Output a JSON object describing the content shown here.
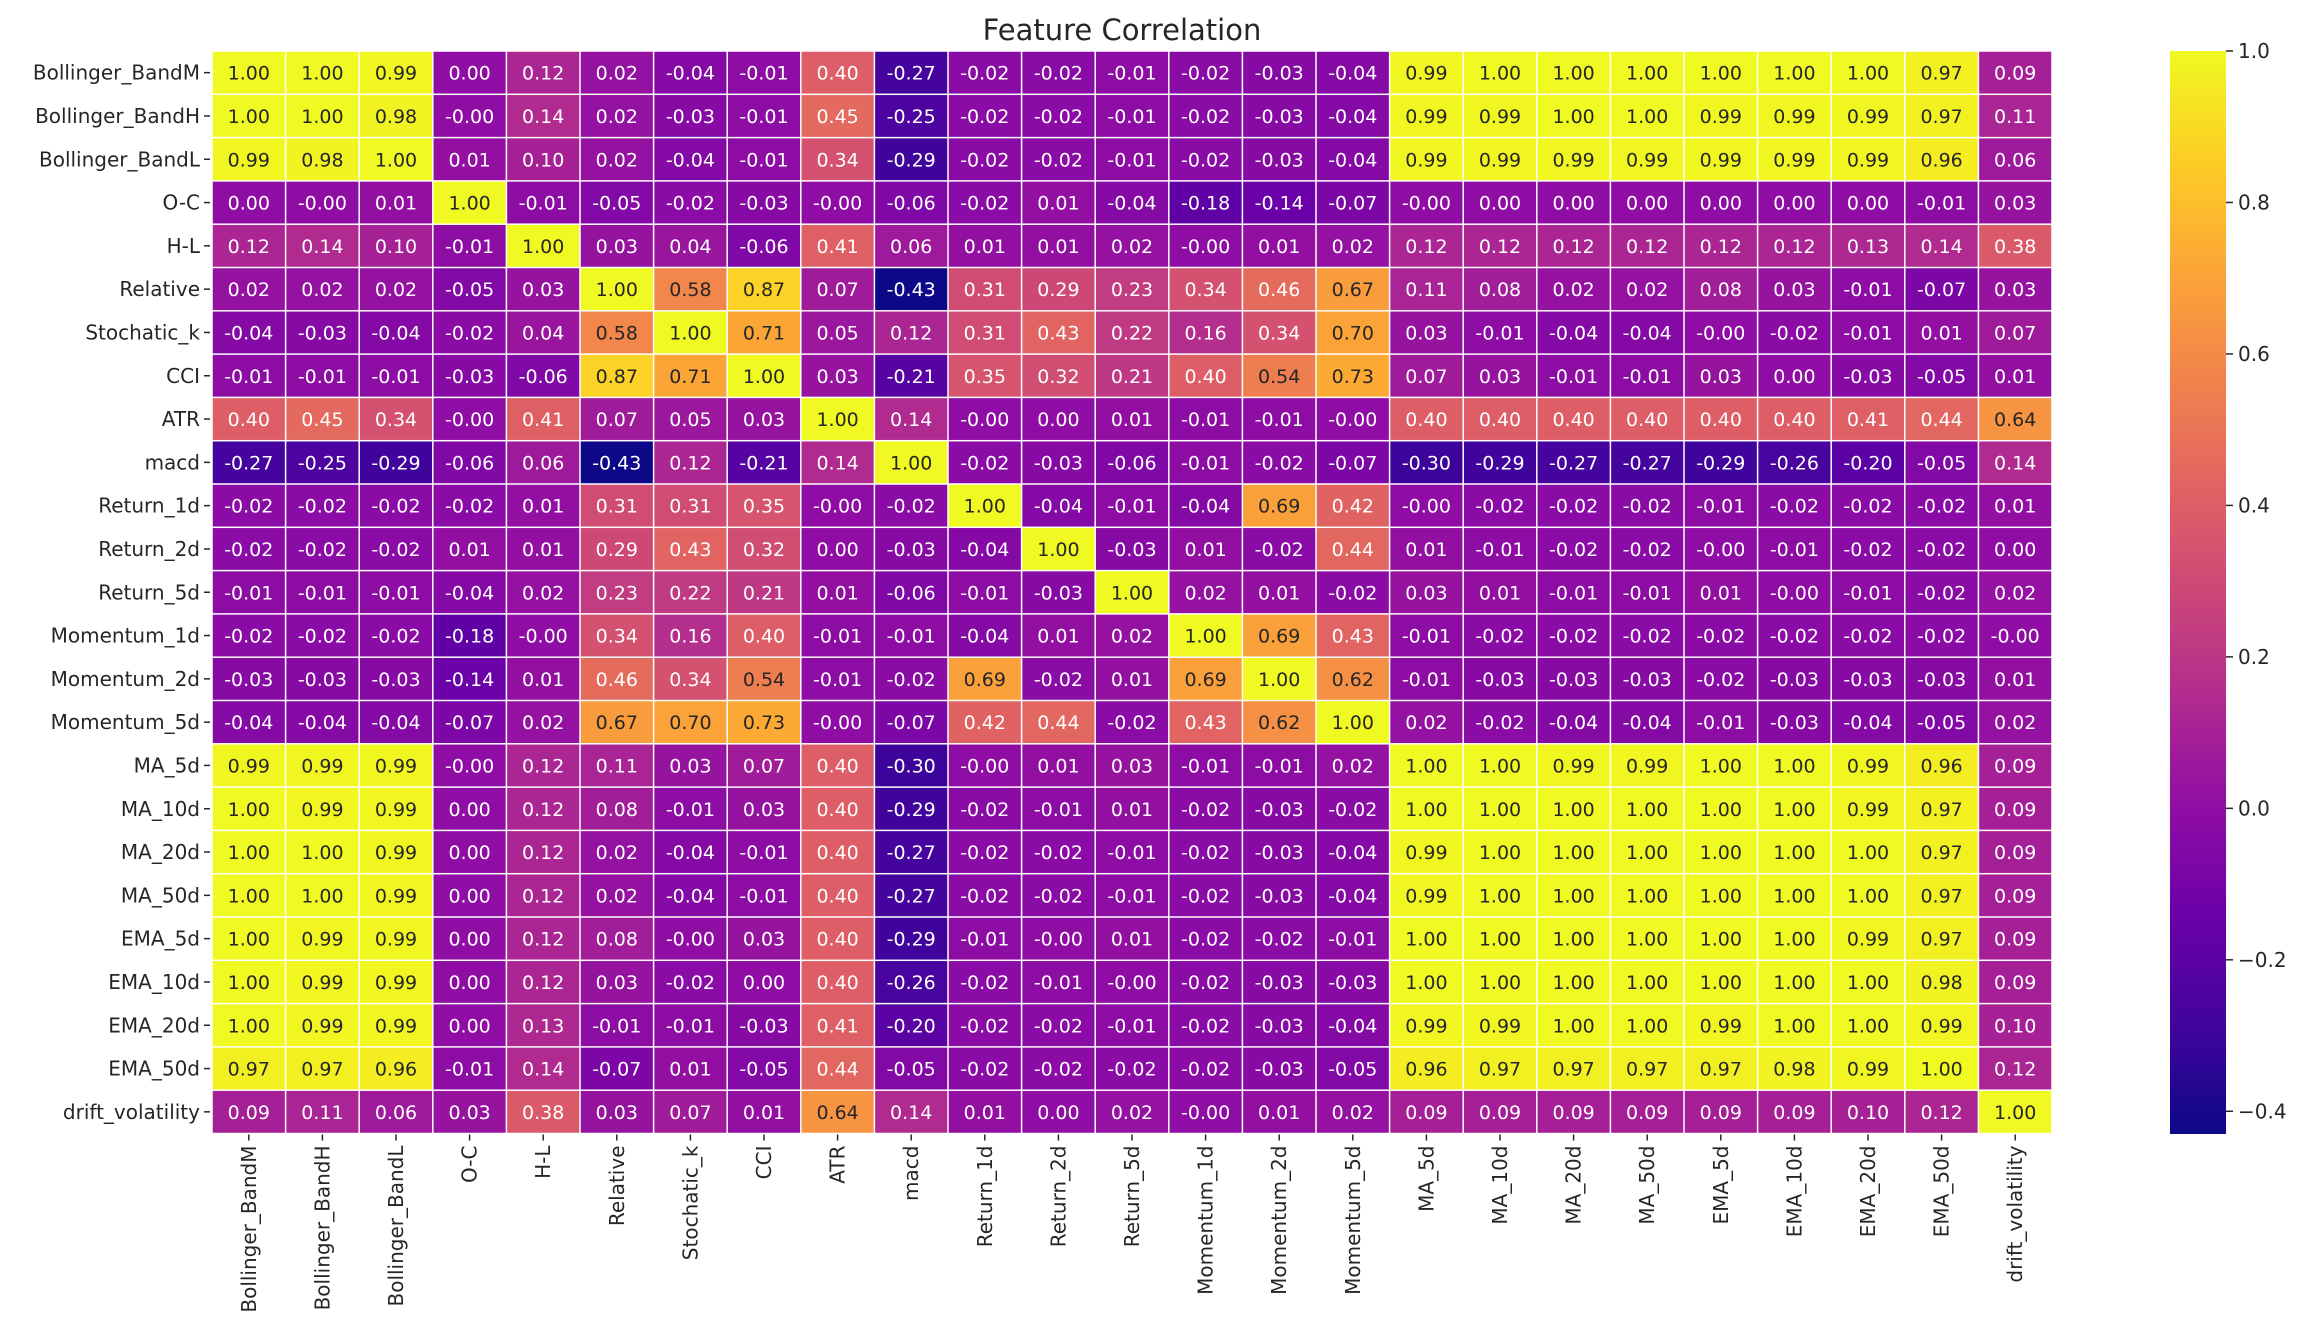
{
  "chart_data": {
    "type": "heatmap",
    "title": "Feature Correlation",
    "labels": [
      "Bollinger_BandM",
      "Bollinger_BandH",
      "Bollinger_BandL",
      "O-C",
      "H-L",
      "Relative",
      "Stochatic_k",
      "CCI",
      "ATR",
      "macd",
      "Return_1d",
      "Return_2d",
      "Return_5d",
      "Momentum_1d",
      "Momentum_2d",
      "Momentum_5d",
      "MA_5d",
      "MA_10d",
      "MA_20d",
      "MA_50d",
      "EMA_5d",
      "EMA_10d",
      "EMA_20d",
      "EMA_50d",
      "drift_volatility"
    ],
    "values": [
      [
        "1.00",
        "1.00",
        "0.99",
        "0.00",
        "0.12",
        "0.02",
        "-0.04",
        "-0.01",
        "0.40",
        "-0.27",
        "-0.02",
        "-0.02",
        "-0.01",
        "-0.02",
        "-0.03",
        "-0.04",
        "0.99",
        "1.00",
        "1.00",
        "1.00",
        "1.00",
        "1.00",
        "1.00",
        "0.97",
        "0.09"
      ],
      [
        "1.00",
        "1.00",
        "0.98",
        "-0.00",
        "0.14",
        "0.02",
        "-0.03",
        "-0.01",
        "0.45",
        "-0.25",
        "-0.02",
        "-0.02",
        "-0.01",
        "-0.02",
        "-0.03",
        "-0.04",
        "0.99",
        "0.99",
        "1.00",
        "1.00",
        "0.99",
        "0.99",
        "0.99",
        "0.97",
        "0.11"
      ],
      [
        "0.99",
        "0.98",
        "1.00",
        "0.01",
        "0.10",
        "0.02",
        "-0.04",
        "-0.01",
        "0.34",
        "-0.29",
        "-0.02",
        "-0.02",
        "-0.01",
        "-0.02",
        "-0.03",
        "-0.04",
        "0.99",
        "0.99",
        "0.99",
        "0.99",
        "0.99",
        "0.99",
        "0.99",
        "0.96",
        "0.06"
      ],
      [
        "0.00",
        "-0.00",
        "0.01",
        "1.00",
        "-0.01",
        "-0.05",
        "-0.02",
        "-0.03",
        "-0.00",
        "-0.06",
        "-0.02",
        "0.01",
        "-0.04",
        "-0.18",
        "-0.14",
        "-0.07",
        "-0.00",
        "0.00",
        "0.00",
        "0.00",
        "0.00",
        "0.00",
        "0.00",
        "-0.01",
        "0.03"
      ],
      [
        "0.12",
        "0.14",
        "0.10",
        "-0.01",
        "1.00",
        "0.03",
        "0.04",
        "-0.06",
        "0.41",
        "0.06",
        "0.01",
        "0.01",
        "0.02",
        "-0.00",
        "0.01",
        "0.02",
        "0.12",
        "0.12",
        "0.12",
        "0.12",
        "0.12",
        "0.12",
        "0.13",
        "0.14",
        "0.38"
      ],
      [
        "0.02",
        "0.02",
        "0.02",
        "-0.05",
        "0.03",
        "1.00",
        "0.58",
        "0.87",
        "0.07",
        "-0.43",
        "0.31",
        "0.29",
        "0.23",
        "0.34",
        "0.46",
        "0.67",
        "0.11",
        "0.08",
        "0.02",
        "0.02",
        "0.08",
        "0.03",
        "-0.01",
        "-0.07",
        "0.03"
      ],
      [
        "-0.04",
        "-0.03",
        "-0.04",
        "-0.02",
        "0.04",
        "0.58",
        "1.00",
        "0.71",
        "0.05",
        "0.12",
        "0.31",
        "0.43",
        "0.22",
        "0.16",
        "0.34",
        "0.70",
        "0.03",
        "-0.01",
        "-0.04",
        "-0.04",
        "-0.00",
        "-0.02",
        "-0.01",
        "0.01",
        "0.07"
      ],
      [
        "-0.01",
        "-0.01",
        "-0.01",
        "-0.03",
        "-0.06",
        "0.87",
        "0.71",
        "1.00",
        "0.03",
        "-0.21",
        "0.35",
        "0.32",
        "0.21",
        "0.40",
        "0.54",
        "0.73",
        "0.07",
        "0.03",
        "-0.01",
        "-0.01",
        "0.03",
        "0.00",
        "-0.03",
        "-0.05",
        "0.01"
      ],
      [
        "0.40",
        "0.45",
        "0.34",
        "-0.00",
        "0.41",
        "0.07",
        "0.05",
        "0.03",
        "1.00",
        "0.14",
        "-0.00",
        "0.00",
        "0.01",
        "-0.01",
        "-0.01",
        "-0.00",
        "0.40",
        "0.40",
        "0.40",
        "0.40",
        "0.40",
        "0.40",
        "0.41",
        "0.44",
        "0.64"
      ],
      [
        "-0.27",
        "-0.25",
        "-0.29",
        "-0.06",
        "0.06",
        "-0.43",
        "0.12",
        "-0.21",
        "0.14",
        "1.00",
        "-0.02",
        "-0.03",
        "-0.06",
        "-0.01",
        "-0.02",
        "-0.07",
        "-0.30",
        "-0.29",
        "-0.27",
        "-0.27",
        "-0.29",
        "-0.26",
        "-0.20",
        "-0.05",
        "0.14"
      ],
      [
        "-0.02",
        "-0.02",
        "-0.02",
        "-0.02",
        "0.01",
        "0.31",
        "0.31",
        "0.35",
        "-0.00",
        "-0.02",
        "1.00",
        "-0.04",
        "-0.01",
        "-0.04",
        "0.69",
        "0.42",
        "-0.00",
        "-0.02",
        "-0.02",
        "-0.02",
        "-0.01",
        "-0.02",
        "-0.02",
        "-0.02",
        "0.01"
      ],
      [
        "-0.02",
        "-0.02",
        "-0.02",
        "0.01",
        "0.01",
        "0.29",
        "0.43",
        "0.32",
        "0.00",
        "-0.03",
        "-0.04",
        "1.00",
        "-0.03",
        "0.01",
        "-0.02",
        "0.44",
        "0.01",
        "-0.01",
        "-0.02",
        "-0.02",
        "-0.00",
        "-0.01",
        "-0.02",
        "-0.02",
        "0.00"
      ],
      [
        "-0.01",
        "-0.01",
        "-0.01",
        "-0.04",
        "0.02",
        "0.23",
        "0.22",
        "0.21",
        "0.01",
        "-0.06",
        "-0.01",
        "-0.03",
        "1.00",
        "0.02",
        "0.01",
        "-0.02",
        "0.03",
        "0.01",
        "-0.01",
        "-0.01",
        "0.01",
        "-0.00",
        "-0.01",
        "-0.02",
        "0.02"
      ],
      [
        "-0.02",
        "-0.02",
        "-0.02",
        "-0.18",
        "-0.00",
        "0.34",
        "0.16",
        "0.40",
        "-0.01",
        "-0.01",
        "-0.04",
        "0.01",
        "0.02",
        "1.00",
        "0.69",
        "0.43",
        "-0.01",
        "-0.02",
        "-0.02",
        "-0.02",
        "-0.02",
        "-0.02",
        "-0.02",
        "-0.02",
        "-0.00"
      ],
      [
        "-0.03",
        "-0.03",
        "-0.03",
        "-0.14",
        "0.01",
        "0.46",
        "0.34",
        "0.54",
        "-0.01",
        "-0.02",
        "0.69",
        "-0.02",
        "0.01",
        "0.69",
        "1.00",
        "0.62",
        "-0.01",
        "-0.03",
        "-0.03",
        "-0.03",
        "-0.02",
        "-0.03",
        "-0.03",
        "-0.03",
        "0.01"
      ],
      [
        "-0.04",
        "-0.04",
        "-0.04",
        "-0.07",
        "0.02",
        "0.67",
        "0.70",
        "0.73",
        "-0.00",
        "-0.07",
        "0.42",
        "0.44",
        "-0.02",
        "0.43",
        "0.62",
        "1.00",
        "0.02",
        "-0.02",
        "-0.04",
        "-0.04",
        "-0.01",
        "-0.03",
        "-0.04",
        "-0.05",
        "0.02"
      ],
      [
        "0.99",
        "0.99",
        "0.99",
        "-0.00",
        "0.12",
        "0.11",
        "0.03",
        "0.07",
        "0.40",
        "-0.30",
        "-0.00",
        "0.01",
        "0.03",
        "-0.01",
        "-0.01",
        "0.02",
        "1.00",
        "1.00",
        "0.99",
        "0.99",
        "1.00",
        "1.00",
        "0.99",
        "0.96",
        "0.09"
      ],
      [
        "1.00",
        "0.99",
        "0.99",
        "0.00",
        "0.12",
        "0.08",
        "-0.01",
        "0.03",
        "0.40",
        "-0.29",
        "-0.02",
        "-0.01",
        "0.01",
        "-0.02",
        "-0.03",
        "-0.02",
        "1.00",
        "1.00",
        "1.00",
        "1.00",
        "1.00",
        "1.00",
        "0.99",
        "0.97",
        "0.09"
      ],
      [
        "1.00",
        "1.00",
        "0.99",
        "0.00",
        "0.12",
        "0.02",
        "-0.04",
        "-0.01",
        "0.40",
        "-0.27",
        "-0.02",
        "-0.02",
        "-0.01",
        "-0.02",
        "-0.03",
        "-0.04",
        "0.99",
        "1.00",
        "1.00",
        "1.00",
        "1.00",
        "1.00",
        "1.00",
        "0.97",
        "0.09"
      ],
      [
        "1.00",
        "1.00",
        "0.99",
        "0.00",
        "0.12",
        "0.02",
        "-0.04",
        "-0.01",
        "0.40",
        "-0.27",
        "-0.02",
        "-0.02",
        "-0.01",
        "-0.02",
        "-0.03",
        "-0.04",
        "0.99",
        "1.00",
        "1.00",
        "1.00",
        "1.00",
        "1.00",
        "1.00",
        "0.97",
        "0.09"
      ],
      [
        "1.00",
        "0.99",
        "0.99",
        "0.00",
        "0.12",
        "0.08",
        "-0.00",
        "0.03",
        "0.40",
        "-0.29",
        "-0.01",
        "-0.00",
        "0.01",
        "-0.02",
        "-0.02",
        "-0.01",
        "1.00",
        "1.00",
        "1.00",
        "1.00",
        "1.00",
        "1.00",
        "0.99",
        "0.97",
        "0.09"
      ],
      [
        "1.00",
        "0.99",
        "0.99",
        "0.00",
        "0.12",
        "0.03",
        "-0.02",
        "0.00",
        "0.40",
        "-0.26",
        "-0.02",
        "-0.01",
        "-0.00",
        "-0.02",
        "-0.03",
        "-0.03",
        "1.00",
        "1.00",
        "1.00",
        "1.00",
        "1.00",
        "1.00",
        "1.00",
        "0.98",
        "0.09"
      ],
      [
        "1.00",
        "0.99",
        "0.99",
        "0.00",
        "0.13",
        "-0.01",
        "-0.01",
        "-0.03",
        "0.41",
        "-0.20",
        "-0.02",
        "-0.02",
        "-0.01",
        "-0.02",
        "-0.03",
        "-0.04",
        "0.99",
        "0.99",
        "1.00",
        "1.00",
        "0.99",
        "1.00",
        "1.00",
        "0.99",
        "0.10"
      ],
      [
        "0.97",
        "0.97",
        "0.96",
        "-0.01",
        "0.14",
        "-0.07",
        "0.01",
        "-0.05",
        "0.44",
        "-0.05",
        "-0.02",
        "-0.02",
        "-0.02",
        "-0.02",
        "-0.03",
        "-0.05",
        "0.96",
        "0.97",
        "0.97",
        "0.97",
        "0.97",
        "0.98",
        "0.99",
        "1.00",
        "0.12"
      ],
      [
        "0.09",
        "0.11",
        "0.06",
        "0.03",
        "0.38",
        "0.03",
        "0.07",
        "0.01",
        "0.64",
        "0.14",
        "0.01",
        "0.00",
        "0.02",
        "-0.00",
        "0.01",
        "0.02",
        "0.09",
        "0.09",
        "0.09",
        "0.09",
        "0.09",
        "0.09",
        "0.10",
        "0.12",
        "1.00"
      ]
    ],
    "colormap": "plasma",
    "vmin": -0.43,
    "vmax": 1.0,
    "colorbar_ticks": [
      "1.0",
      "0.8",
      "0.6",
      "0.4",
      "0.2",
      "0.0",
      "−0.2",
      "−0.4"
    ],
    "annotations": true
  }
}
